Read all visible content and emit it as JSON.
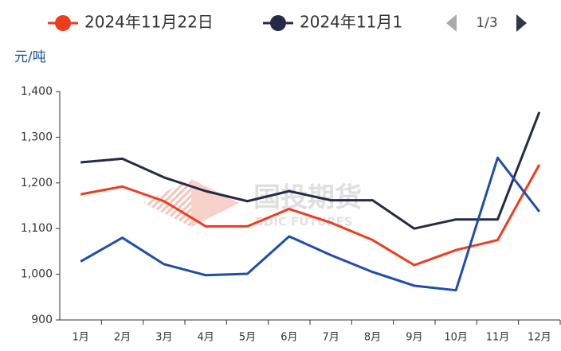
{
  "chart_data": {
    "type": "line",
    "unit": "元/吨",
    "legend_page": "1/3",
    "watermark": {
      "title": "国投期货",
      "subtitle": "SDIC FUTURES"
    },
    "categories": [
      "1月",
      "2月",
      "3月",
      "4月",
      "5月",
      "6月",
      "7月",
      "8月",
      "9月",
      "10月",
      "11月",
      "12月"
    ],
    "series": [
      {
        "name": "2024年11月22日",
        "color": "#f03c1e",
        "values": [
          1175,
          1192,
          1160,
          1105,
          1105,
          1143,
          1113,
          1075,
          1020,
          1053,
          1075,
          1240
        ]
      },
      {
        "name": "2024年11月1",
        "color": "#262a48",
        "values": [
          1245,
          1253,
          1212,
          1182,
          1160,
          1182,
          1162,
          1162,
          1100,
          1120,
          1120,
          1355
        ]
      },
      {
        "color": "#1f4ea8",
        "values": [
          1028,
          1080,
          1022,
          998,
          1001,
          1083,
          1042,
          1005,
          975,
          965,
          1255,
          1137
        ]
      }
    ],
    "ylim": [
      900,
      1400
    ],
    "yticks": [
      {
        "value": 900,
        "label": "900"
      },
      {
        "value": 1000,
        "label": "1,000"
      },
      {
        "value": 1100,
        "label": "1,100"
      },
      {
        "value": 1200,
        "label": "1,200"
      },
      {
        "value": 1300,
        "label": "1,300"
      },
      {
        "value": 1400,
        "label": "1,400"
      }
    ],
    "grid": false
  }
}
